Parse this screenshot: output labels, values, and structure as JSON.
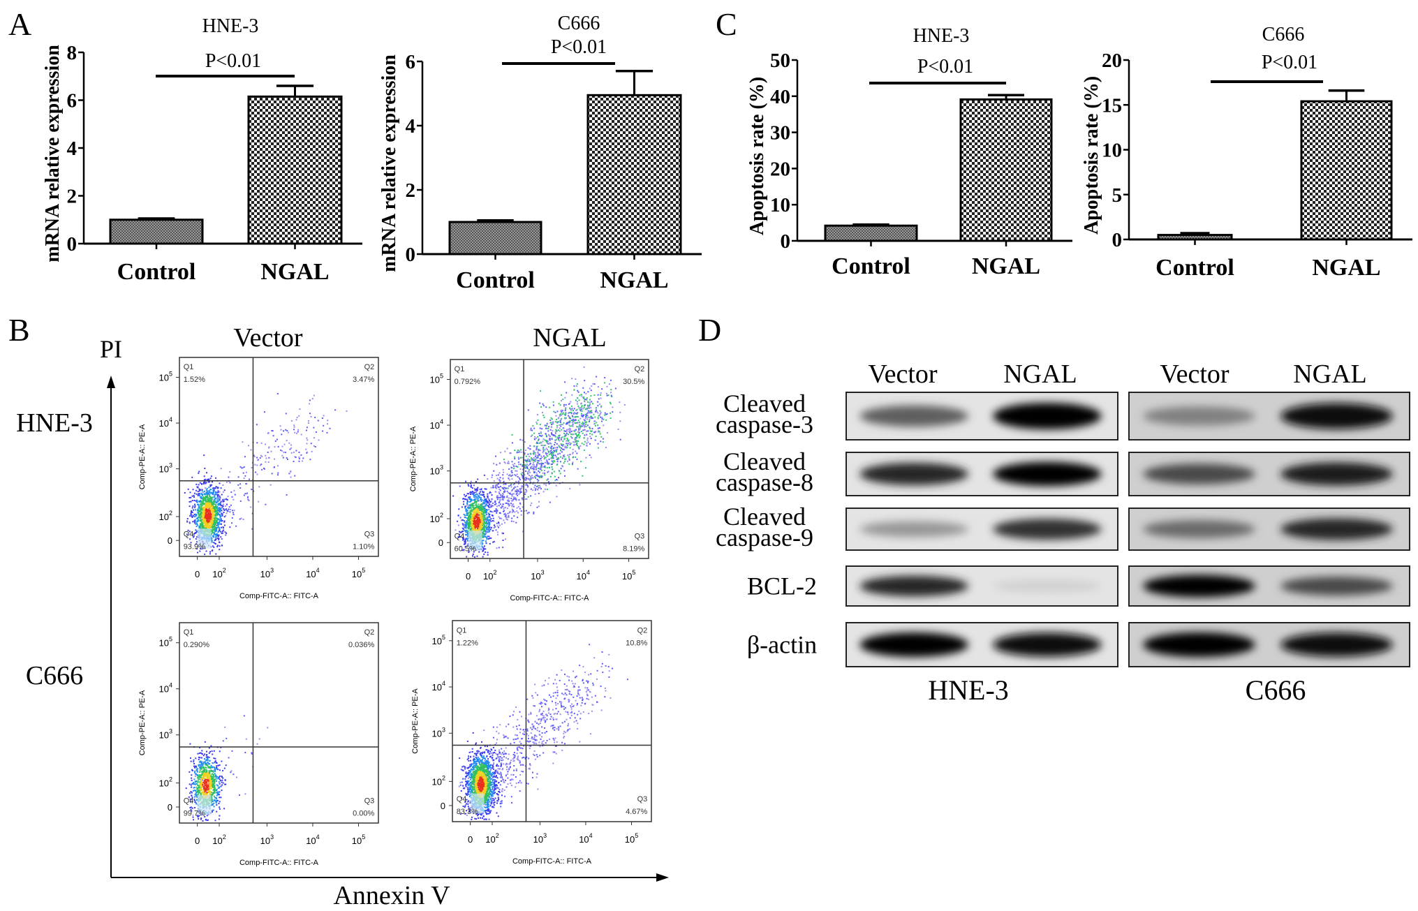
{
  "panel_labels": {
    "A": "A",
    "B": "B",
    "C": "C",
    "D": "D"
  },
  "chart_data": [
    {
      "type": "bar",
      "panel": "A",
      "title": "HNE-3",
      "ylabel": "mRNA relative expression",
      "xlabel": "",
      "categories": [
        "Control",
        "NGAL"
      ],
      "values": [
        1.0,
        6.15
      ],
      "errors": [
        0.05,
        0.45
      ],
      "ylim": [
        0,
        8
      ],
      "yticks": [
        0,
        2,
        4,
        6,
        8
      ],
      "annotation": "P<0.01",
      "grid": false
    },
    {
      "type": "bar",
      "panel": "A",
      "title": "C666",
      "ylabel": "mRNA relative expression",
      "xlabel": "",
      "categories": [
        "Control",
        "NGAL"
      ],
      "values": [
        1.0,
        4.95
      ],
      "errors": [
        0.05,
        0.75
      ],
      "ylim": [
        0,
        6
      ],
      "yticks": [
        0,
        2,
        4,
        6
      ],
      "annotation": "P<0.01",
      "grid": false
    },
    {
      "type": "bar",
      "panel": "C",
      "title": "HNE-3",
      "ylabel": "Apoptosis rate (%)",
      "xlabel": "",
      "categories": [
        "Control",
        "NGAL"
      ],
      "values": [
        4.2,
        39.1
      ],
      "errors": [
        0.3,
        1.2
      ],
      "ylim": [
        0,
        50
      ],
      "yticks": [
        0,
        10,
        20,
        30,
        40,
        50
      ],
      "annotation": "P<0.01",
      "grid": false
    },
    {
      "type": "bar",
      "panel": "C",
      "title": "C666",
      "ylabel": "Apoptosis rate (%)",
      "xlabel": "",
      "categories": [
        "Control",
        "NGAL"
      ],
      "values": [
        0.5,
        15.4
      ],
      "errors": [
        0.2,
        1.2
      ],
      "ylim": [
        0,
        20
      ],
      "yticks": [
        0,
        5,
        10,
        15,
        20
      ],
      "annotation": "P<0.01",
      "grid": false
    }
  ],
  "flow": {
    "y_arrow_label": "PI",
    "x_arrow_label": "Annexin V",
    "columns": [
      "Vector",
      "NGAL"
    ],
    "rows": [
      "HNE-3",
      "C666"
    ],
    "x_axis_title": "Comp-FITC-A:: FITC-A",
    "y_axis_title": "Comp-PE-A:: PE-A",
    "x_ticks": [
      {
        "base": "0",
        "exp": ""
      },
      {
        "base": "10",
        "exp": "2"
      },
      {
        "base": "10",
        "exp": "3"
      },
      {
        "base": "10",
        "exp": "4"
      },
      {
        "base": "10",
        "exp": "5"
      }
    ],
    "y_ticks": [
      {
        "base": "10",
        "exp": "5"
      },
      {
        "base": "10",
        "exp": "4"
      },
      {
        "base": "10",
        "exp": "3"
      },
      {
        "base": "10",
        "exp": "2"
      },
      {
        "base": "0",
        "exp": ""
      }
    ],
    "plots": [
      {
        "row": "HNE-3",
        "column": "Vector",
        "quadrants": [
          {
            "name": "Q1",
            "value": "1.52%"
          },
          {
            "name": "Q2",
            "value": "3.47%"
          },
          {
            "name": "Q3",
            "value": "1.10%"
          },
          {
            "name": "Q4",
            "value": "93.9%"
          }
        ]
      },
      {
        "row": "HNE-3",
        "column": "NGAL",
        "quadrants": [
          {
            "name": "Q1",
            "value": "0.792%"
          },
          {
            "name": "Q2",
            "value": "30.5%"
          },
          {
            "name": "Q3",
            "value": "8.19%"
          },
          {
            "name": "Q4",
            "value": "60.5%"
          }
        ]
      },
      {
        "row": "C666",
        "column": "Vector",
        "quadrants": [
          {
            "name": "Q1",
            "value": "0.290%"
          },
          {
            "name": "Q2",
            "value": "0.036%"
          },
          {
            "name": "Q3",
            "value": "0.00%"
          },
          {
            "name": "Q4",
            "value": "99.7%"
          }
        ]
      },
      {
        "row": "C666",
        "column": "NGAL",
        "quadrants": [
          {
            "name": "Q1",
            "value": "1.22%"
          },
          {
            "name": "Q2",
            "value": "10.8%"
          },
          {
            "name": "Q3",
            "value": "4.67%"
          },
          {
            "name": "Q4",
            "value": "83.3%"
          }
        ]
      }
    ]
  },
  "western": {
    "columns": [
      "Vector",
      "NGAL"
    ],
    "cell_lines": [
      "HNE-3",
      "C666"
    ],
    "rows": [
      {
        "label_lines": [
          "Cleaved",
          "caspase-3"
        ],
        "intensity": [
          [
            0.6,
            1.0
          ],
          [
            0.45,
            0.95
          ]
        ]
      },
      {
        "label_lines": [
          "Cleaved",
          "caspase-8"
        ],
        "intensity": [
          [
            0.85,
            1.0
          ],
          [
            0.7,
            0.9
          ]
        ]
      },
      {
        "label_lines": [
          "Cleaved",
          "caspase-9"
        ],
        "intensity": [
          [
            0.35,
            0.8
          ],
          [
            0.55,
            0.85
          ]
        ]
      },
      {
        "label_lines": [
          "BCL-2"
        ],
        "intensity": [
          [
            0.85,
            0.1
          ],
          [
            1.0,
            0.7
          ]
        ]
      },
      {
        "label_lines": [
          "β-actin"
        ],
        "intensity": [
          [
            1.0,
            0.95
          ],
          [
            1.0,
            0.95
          ]
        ]
      }
    ]
  }
}
